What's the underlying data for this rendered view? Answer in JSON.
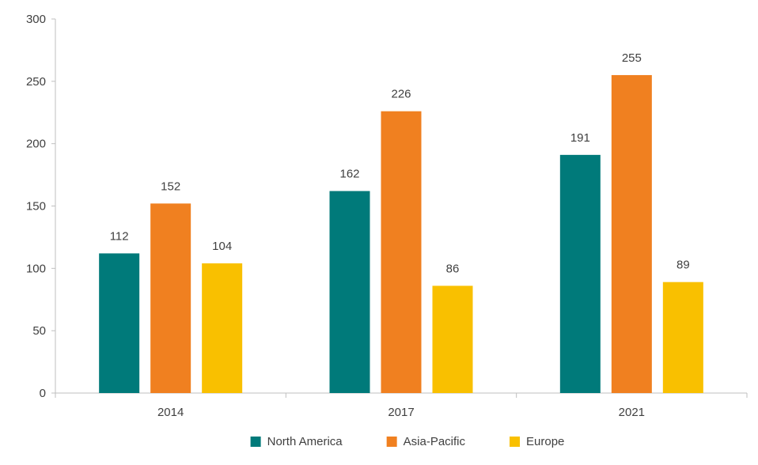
{
  "chart_data": {
    "type": "bar",
    "categories": [
      "2014",
      "2017",
      "2021"
    ],
    "series": [
      {
        "name": "North America",
        "values": [
          112,
          162,
          191
        ],
        "color": "#007a7a"
      },
      {
        "name": "Asia-Pacific",
        "values": [
          152,
          226,
          255
        ],
        "color": "#f08020"
      },
      {
        "name": "Europe",
        "values": [
          104,
          86,
          89
        ],
        "color": "#f9c000"
      }
    ],
    "ylim": [
      0,
      300
    ],
    "yticks": [
      0,
      50,
      100,
      150,
      200,
      250,
      300
    ],
    "ytick_labels": [
      "0",
      "50",
      "100",
      "150",
      "200",
      "250",
      "300"
    ],
    "grid": false,
    "legend_position": "bottom",
    "data_labels": true
  }
}
